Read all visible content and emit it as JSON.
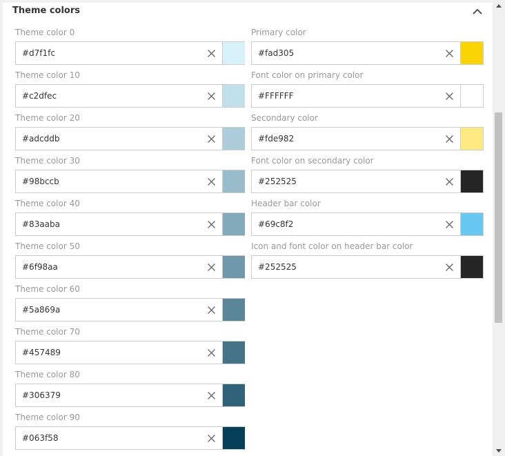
{
  "section": {
    "title": "Theme colors"
  },
  "left_fields": [
    {
      "label": "Theme color 0",
      "value": "#d7f1fc",
      "swatch": "#d7f1fc"
    },
    {
      "label": "Theme color 10",
      "value": "#c2dfec",
      "swatch": "#c2dfec"
    },
    {
      "label": "Theme color 20",
      "value": "#adcddb",
      "swatch": "#adcddb"
    },
    {
      "label": "Theme color 30",
      "value": "#98bccb",
      "swatch": "#98bccb"
    },
    {
      "label": "Theme color 40",
      "value": "#83aaba",
      "swatch": "#83aaba"
    },
    {
      "label": "Theme color 50",
      "value": "#6f98aa",
      "swatch": "#6f98aa"
    },
    {
      "label": "Theme color 60",
      "value": "#5a869a",
      "swatch": "#5a869a"
    },
    {
      "label": "Theme color 70",
      "value": "#457489",
      "swatch": "#457489"
    },
    {
      "label": "Theme color 80",
      "value": "#306379",
      "swatch": "#306379"
    },
    {
      "label": "Theme color 90",
      "value": "#063f58",
      "swatch": "#063f58"
    }
  ],
  "right_fields": [
    {
      "label": "Primary color",
      "value": "#fad305",
      "swatch": "#fad305"
    },
    {
      "label": "Font color on primary color",
      "value": "#FFFFFF",
      "swatch": "#ffffff"
    },
    {
      "label": "Secondary color",
      "value": "#fde982",
      "swatch": "#fde982"
    },
    {
      "label": "Font color on secondary color",
      "value": "#252525",
      "swatch": "#252525"
    },
    {
      "label": "Header bar color",
      "value": "#69c8f2",
      "swatch": "#69c8f2"
    },
    {
      "label": "Icon and font color on header bar color",
      "value": "#252525",
      "swatch": "#252525"
    }
  ],
  "icons": {
    "collapse": "chevron-up-icon",
    "clear": "close-icon",
    "scroll_up": "scroll-up-arrow-icon",
    "scroll_down": "scroll-down-arrow-icon"
  }
}
